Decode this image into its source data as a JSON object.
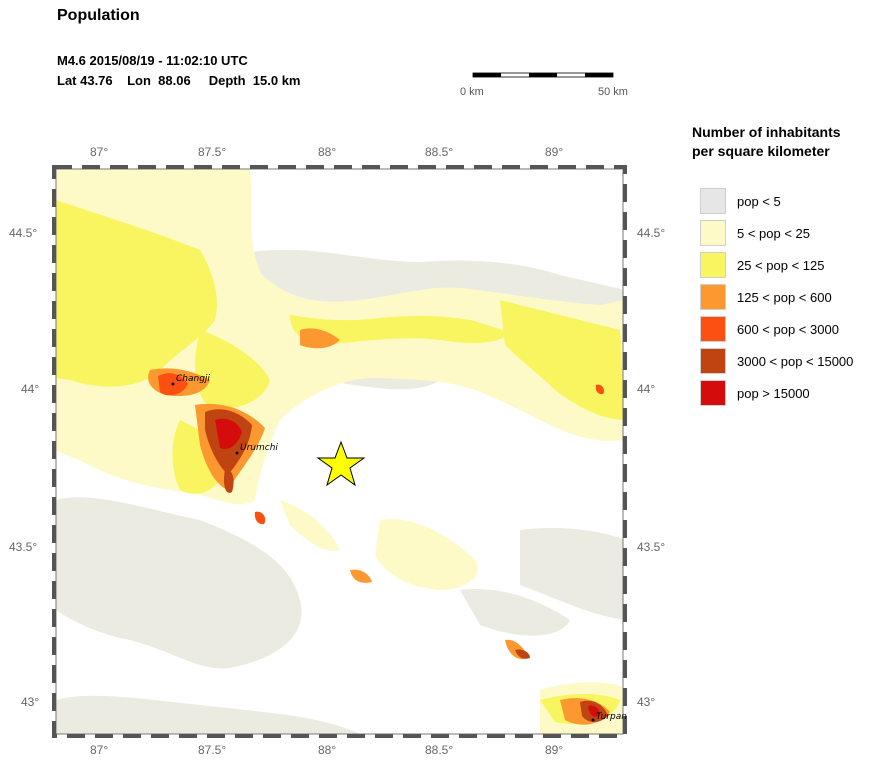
{
  "header": {
    "title": "Population",
    "event_line": "M4.6  2015/08/19 - 11:02:10 UTC",
    "location_line": "Lat 43.76    Lon  88.06     Depth  15.0 km"
  },
  "scale": {
    "start_label": "0 km",
    "end_label": "50 km"
  },
  "legend": {
    "title_line1": "Number of inhabitants",
    "title_line2": "per square kilometer",
    "items": [
      {
        "label": "pop < 5",
        "color": "#e6e6e6"
      },
      {
        "label": "5 < pop < 25",
        "color": "#fdfac8"
      },
      {
        "label": "25 < pop < 125",
        "color": "#f8f560"
      },
      {
        "label": "125 < pop < 600",
        "color": "#fb9830"
      },
      {
        "label": "600 < pop < 3000",
        "color": "#fb5012"
      },
      {
        "label": "3000 < pop < 15000",
        "color": "#bf4412"
      },
      {
        "label": "pop > 15000",
        "color": "#d40c0c"
      }
    ]
  },
  "map": {
    "lon_ticks": [
      "87°",
      "87.5°",
      "88°",
      "88.5°",
      "89°"
    ],
    "lat_ticks": [
      "44.5°",
      "44°",
      "43.5°",
      "43°"
    ],
    "cities": [
      "Changji",
      "Urumchi",
      "Turpan"
    ],
    "epicenter": {
      "lat": 43.76,
      "lon": 88.06,
      "color": "#ffff00"
    }
  }
}
